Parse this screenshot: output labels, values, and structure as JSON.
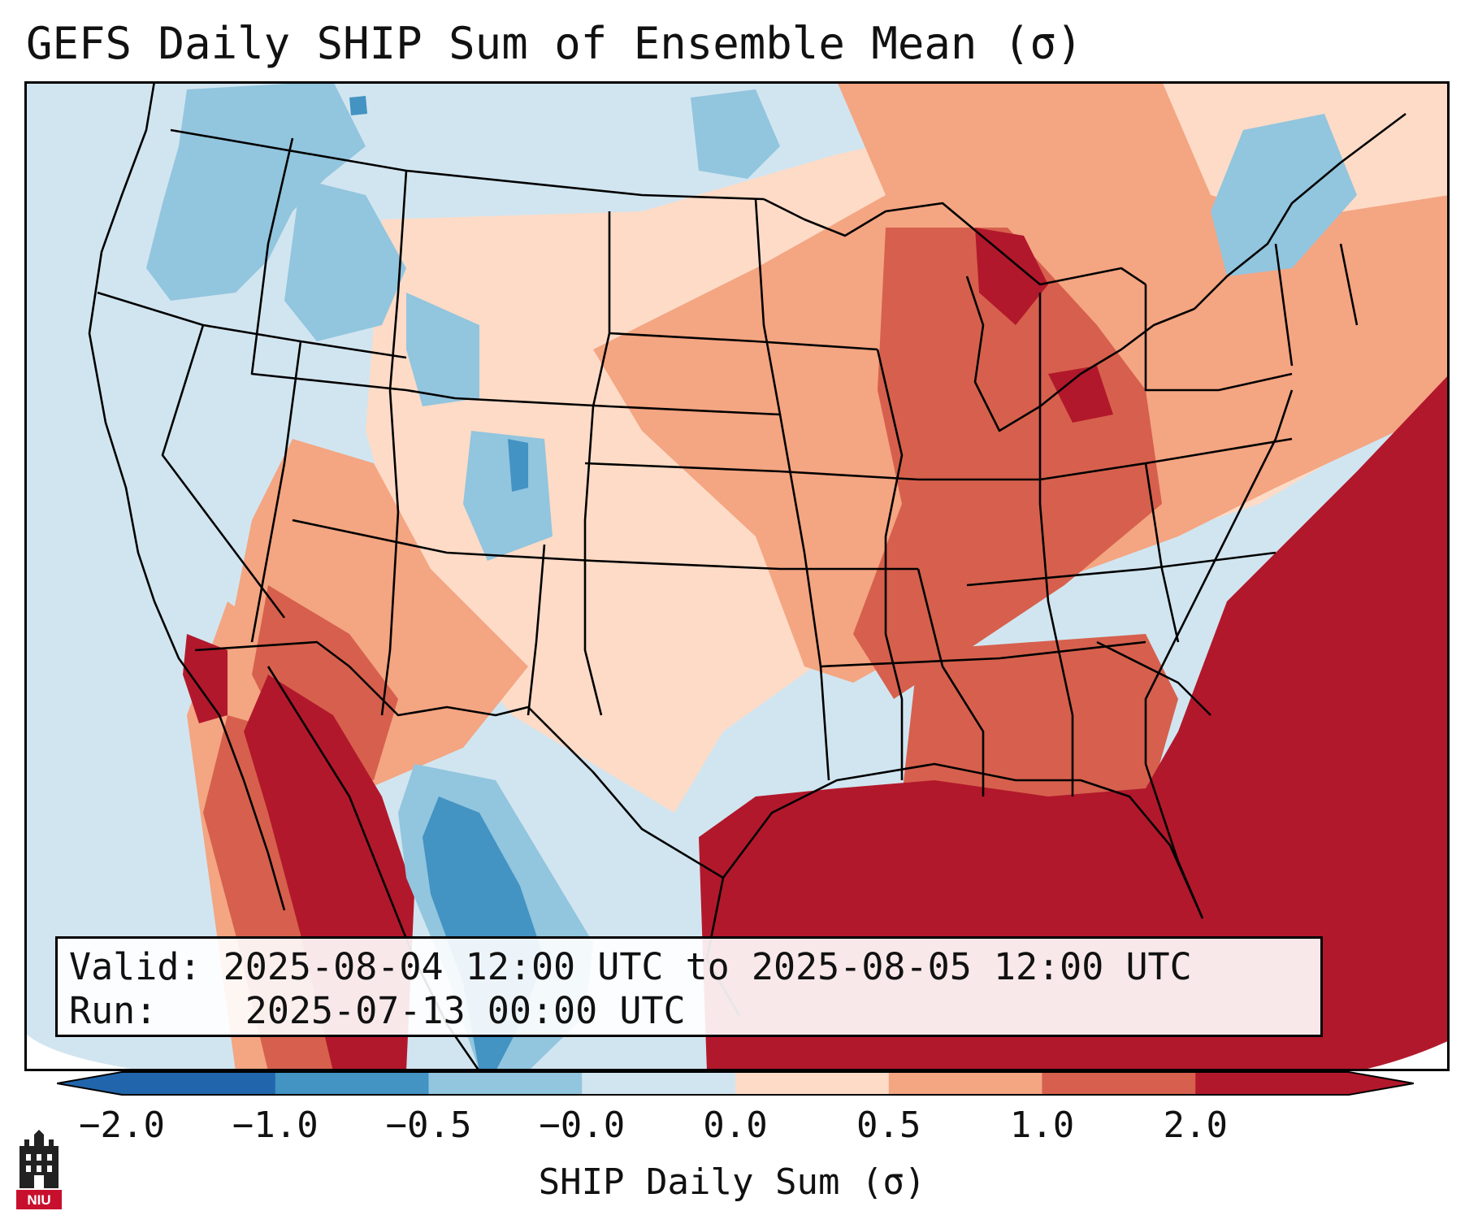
{
  "title": "GEFS Daily SHIP Sum of Ensemble Mean (σ)",
  "info": {
    "valid_label": "Valid:",
    "valid_value": "2025-08-04 12:00 UTC to 2025-08-05 12:00 UTC",
    "run_label": "Run:",
    "run_value": "2025-07-13 00:00 UTC"
  },
  "colorbar": {
    "label": "SHIP Daily Sum (σ)",
    "ticks": [
      "−2.0",
      "−1.0",
      "−0.5",
      "−0.0",
      "0.0",
      "0.5",
      "1.0",
      "2.0"
    ],
    "colors": [
      "#2166ac",
      "#4393c3",
      "#92c5de",
      "#d1e5f0",
      "#fddbc7",
      "#f4a582",
      "#d6604d",
      "#b2182b"
    ]
  },
  "logo": {
    "text": "NIU",
    "icon": "niu-castle-logo-icon"
  }
}
